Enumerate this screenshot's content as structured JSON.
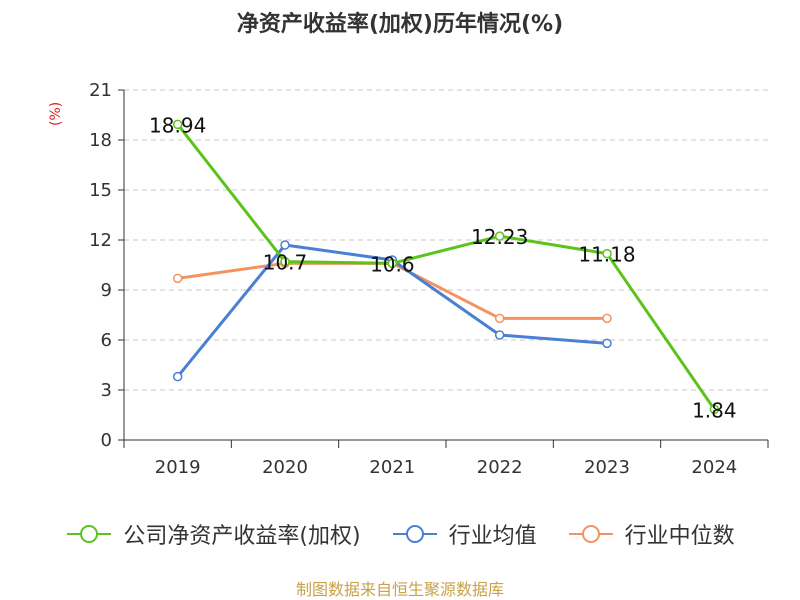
{
  "title": "净资产收益率(加权)历年情况(%)",
  "y_unit": "(%)",
  "source": "制图数据来自恒生聚源数据库",
  "chart_data": {
    "type": "line",
    "title": "净资产收益率(加权)历年情况(%)",
    "categories": [
      "2019",
      "2020",
      "2021",
      "2022",
      "2023",
      "2024"
    ],
    "ylabel": "(%)",
    "ylim": [
      0,
      21
    ],
    "yticks": [
      0,
      3,
      6,
      9,
      12,
      15,
      18,
      21
    ],
    "grid": true,
    "legend_position": "bottom",
    "series": [
      {
        "name": "公司净资产收益率(加权)",
        "color": "#5cc31b",
        "values": [
          18.94,
          10.7,
          10.6,
          12.23,
          11.18,
          1.84
        ],
        "labels": [
          "18.94",
          "10.7",
          "10.6",
          "12.23",
          "11.18",
          "1.84"
        ]
      },
      {
        "name": "行业均值",
        "color": "#4a7fd6",
        "values": [
          3.8,
          11.7,
          10.8,
          6.3,
          5.8,
          null
        ]
      },
      {
        "name": "行业中位数",
        "color": "#f39460",
        "values": [
          9.7,
          10.6,
          10.6,
          7.3,
          7.3,
          null
        ]
      }
    ]
  }
}
